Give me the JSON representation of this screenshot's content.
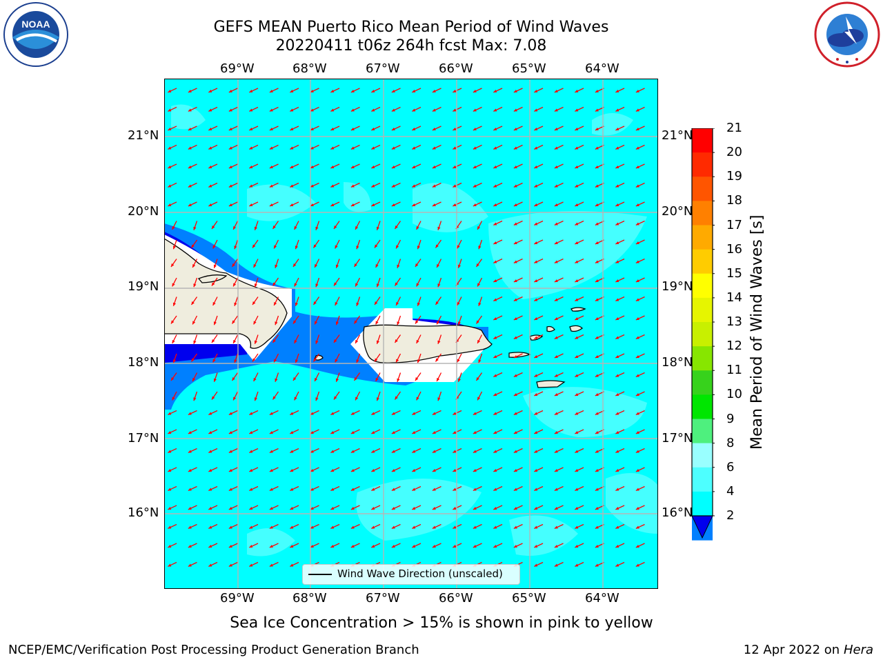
{
  "header": {
    "title_line1": "GEFS MEAN Puerto Rico Mean Period of Wind Waves",
    "title_line2": "20220411 t06z 264h fcst   Max: 7.08"
  },
  "logos": {
    "left": "NOAA",
    "left_ring_text": "NATIONAL OCEANIC AND ATMOSPHERIC ADMINISTRATION · U.S. DEPARTMENT OF COMMERCE",
    "right_ring_text": "NATIONAL WEATHER SERVICE"
  },
  "map": {
    "lon_labels": [
      "69°W",
      "68°W",
      "67°W",
      "66°W",
      "65°W",
      "64°W"
    ],
    "lat_labels": [
      "21°N",
      "20°N",
      "19°N",
      "18°N",
      "17°N",
      "16°N"
    ],
    "legend_label": "Wind Wave Direction (unscaled)",
    "background_color": "#00ffff",
    "arrow_color": "#ff0000",
    "land_color": "#efedde"
  },
  "colorbar": {
    "title": "Mean Period of Wind Waves [s]",
    "ticks": [
      "2",
      "4",
      "6",
      "8",
      "9",
      "10",
      "11",
      "12",
      "13",
      "14",
      "15",
      "16",
      "17",
      "18",
      "19",
      "20",
      "21"
    ],
    "colors": [
      "#0000ee",
      "#0080ff",
      "#00ffff",
      "#4dffff",
      "#99ffff",
      "#4ef07e",
      "#00e600",
      "#37d21c",
      "#87e600",
      "#c8f000",
      "#e6f500",
      "#ffff00",
      "#ffcc00",
      "#ffaa00",
      "#ff8000",
      "#ff5500",
      "#ff2a00",
      "#ff0000"
    ]
  },
  "notes": {
    "ice": "Sea Ice Concentration > 15% is shown in pink to yellow"
  },
  "footer": {
    "left": "NCEP/EMC/Verification Post Processing Product Generation Branch",
    "right_prefix": "12 Apr 2022 on ",
    "right_system": "Hera"
  }
}
